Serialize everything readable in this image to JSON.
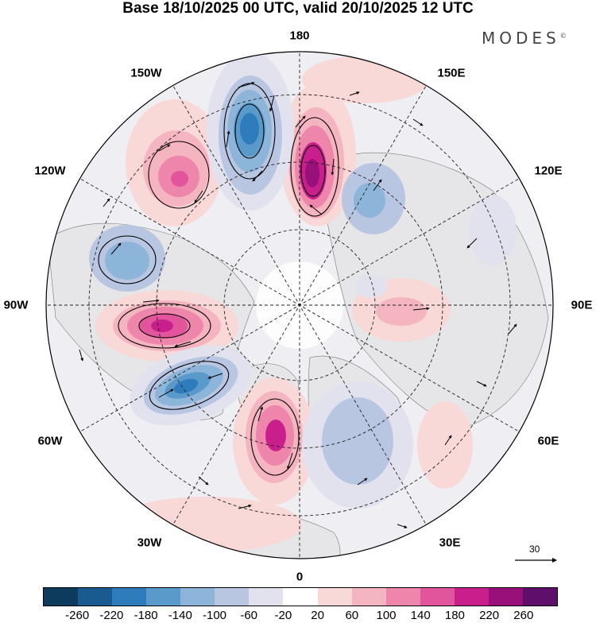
{
  "title": "Base 18/10/2025 00 UTC, valid 20/10/2025 12 UTC",
  "brand": "MODES",
  "brand_mark": "©",
  "longitude_labels": {
    "top": "180",
    "top_right_150": "150E",
    "right_120": "120E",
    "right_90": "90E",
    "right_60": "60E",
    "bottom_right_30": "30E",
    "bottom": "0",
    "bottom_left_30": "30W",
    "left_60": "60W",
    "left_90": "90W",
    "left_120": "120W",
    "top_left_150": "150W"
  },
  "reference_vector": {
    "value": "30"
  },
  "colorbar": {
    "colors": [
      "#0d3b5e",
      "#1a5b8f",
      "#2f7cbd",
      "#5a9acb",
      "#8db5da",
      "#b9c6e2",
      "#e2e2ef",
      "#ffffff",
      "#f9d8d8",
      "#f4b4c0",
      "#ee86ac",
      "#e2559c",
      "#c81f8c",
      "#99107b",
      "#5e0f6b"
    ],
    "labels": [
      "-260",
      "-220",
      "-180",
      "-140",
      "-100",
      "-60",
      "-20",
      "20",
      "60",
      "100",
      "140",
      "180",
      "220",
      "260"
    ]
  }
}
